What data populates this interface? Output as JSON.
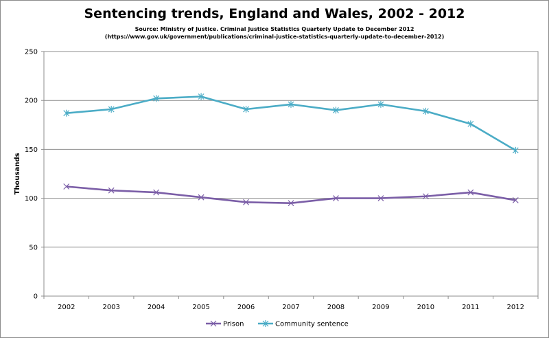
{
  "chart_data": {
    "type": "line",
    "title": "Sentencing trends, England and Wales, 2002 - 2012",
    "subtitle_line1": "Source: Ministry of Justice. Criminal Justice Statistics Quarterly Update to December 2012",
    "subtitle_line2": "(https://www.gov.uk/government/publications/criminal-justice-statistics-quarterly-update-to-december-2012)",
    "xlabel": "",
    "ylabel": "Thousands",
    "ylim": [
      0,
      250
    ],
    "yticks": [
      0,
      50,
      100,
      150,
      200,
      250
    ],
    "grid": "horizontal",
    "legend_position": "bottom",
    "categories": [
      "2002",
      "2003",
      "2004",
      "2005",
      "2006",
      "2007",
      "2008",
      "2009",
      "2010",
      "2011",
      "2012"
    ],
    "series": [
      {
        "name": "Prison",
        "color": "#7b5ea7",
        "marker": "x",
        "values": [
          112,
          108,
          106,
          101,
          96,
          95,
          100,
          100,
          102,
          106,
          98
        ]
      },
      {
        "name": "Community sentence",
        "color": "#4bacc6",
        "marker": "asterisk",
        "values": [
          187,
          191,
          202,
          204,
          191,
          196,
          190,
          196,
          189,
          176,
          149
        ]
      }
    ]
  }
}
